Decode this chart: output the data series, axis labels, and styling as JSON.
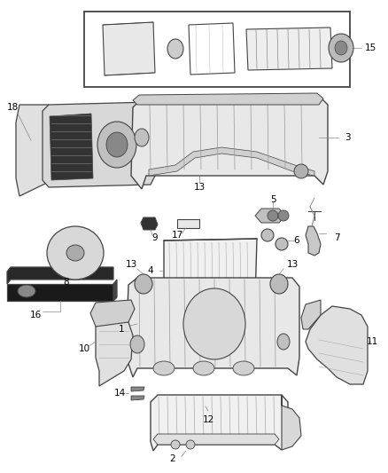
{
  "bg_color": "#ffffff",
  "line_color": "#444444",
  "label_color": "#000000",
  "fig_width": 4.38,
  "fig_height": 5.33,
  "dpi": 100
}
